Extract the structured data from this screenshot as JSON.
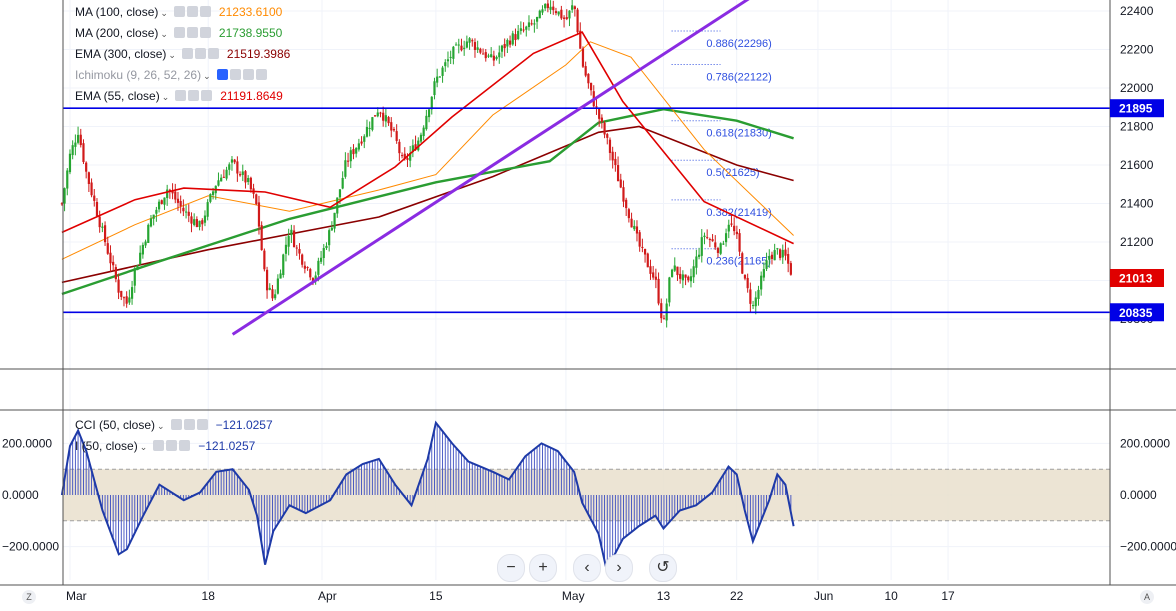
{
  "legend": [
    {
      "name": "MA (100, close)",
      "value": "21233.6100",
      "color": "#ff8a00"
    },
    {
      "name": "MA (200, close)",
      "value": "21738.9550",
      "color": "#2a9d32"
    },
    {
      "name": "EMA (300, close)",
      "value": "21519.3986",
      "color": "#8b0000"
    },
    {
      "name": "Ichimoku (9, 26, 52, 26)",
      "value": "",
      "color": "#9598a1"
    },
    {
      "name": "EMA (55, close)",
      "value": "21191.8649",
      "color": "#e00000"
    }
  ],
  "cci_legend": [
    {
      "name": "CCI (50, close)",
      "value": "−121.0257",
      "color": "#1e3aa8"
    },
    {
      "name": "I (50, close)",
      "value": "−121.0257",
      "color": "#1e3aa8"
    }
  ],
  "nav": {
    "zoom_out": "−",
    "zoom_in": "+",
    "back": "‹",
    "forward": "›",
    "reset": "↺"
  },
  "corner": {
    "left": "Z",
    "right": "A"
  },
  "chart_data": {
    "type": "candlestick",
    "price_axis": {
      "min": 20700,
      "max": 22500,
      "ticks": [
        "22400",
        "22200",
        "22000",
        "21800",
        "21600",
        "21400",
        "21200",
        "21000",
        "20800"
      ]
    },
    "price_tags": [
      {
        "value": 21895,
        "label": "21895",
        "color": "#0000e6"
      },
      {
        "value": 21013,
        "label": "21013",
        "color": "#e00000"
      },
      {
        "value": 20835,
        "label": "20835",
        "color": "#0000e6"
      }
    ],
    "horizontal_lines": [
      21895,
      20835
    ],
    "trendline": {
      "from": [
        "Mar 21",
        "20720"
      ],
      "to": [
        "May 27",
        "22560"
      ],
      "color": "#8a2be2"
    },
    "fibonacci": [
      {
        "label": "0.886(22296)",
        "value": 22296
      },
      {
        "label": "0.786(22122)",
        "value": 22122
      },
      {
        "label": "0.618(21830)",
        "value": 21830
      },
      {
        "label": "0.5(21625)",
        "value": 21625
      },
      {
        "label": "0.382(21419)",
        "value": 21419
      },
      {
        "label": "0.236(21165)",
        "value": 21165
      }
    ],
    "x_ticks": [
      "Mar",
      "18",
      "Apr",
      "15",
      "May",
      "13",
      "22",
      "Jun",
      "10",
      "17"
    ],
    "price_series": [
      [
        "Feb 28",
        21400
      ],
      [
        "Mar 1",
        21650
      ],
      [
        "Mar 2",
        21780
      ],
      [
        "Mar 3",
        21560
      ],
      [
        "Mar 5",
        21250
      ],
      [
        "Mar 7",
        20950
      ],
      [
        "Mar 8",
        20880
      ],
      [
        "Mar 9",
        21060
      ],
      [
        "Mar 11",
        21320
      ],
      [
        "Mar 13",
        21480
      ],
      [
        "Mar 15",
        21360
      ],
      [
        "Mar 17",
        21280
      ],
      [
        "Mar 19",
        21510
      ],
      [
        "Mar 21",
        21610
      ],
      [
        "Mar 23",
        21500
      ],
      [
        "Mar 24",
        21380
      ],
      [
        "Mar 25",
        21000
      ],
      [
        "Mar 26",
        20900
      ],
      [
        "Mar 28",
        21270
      ],
      [
        "Mar 29",
        21150
      ],
      [
        "Mar 31",
        21010
      ],
      [
        "Apr 2",
        21260
      ],
      [
        "Apr 4",
        21620
      ],
      [
        "Apr 6",
        21750
      ],
      [
        "Apr 8",
        21900
      ],
      [
        "Apr 10",
        21740
      ],
      [
        "Apr 11",
        21600
      ],
      [
        "Apr 13",
        21740
      ],
      [
        "Apr 15",
        22040
      ],
      [
        "Apr 17",
        22180
      ],
      [
        "Apr 19",
        22250
      ],
      [
        "Apr 22",
        22140
      ],
      [
        "Apr 24",
        22250
      ],
      [
        "Apr 27",
        22330
      ],
      [
        "Apr 29",
        22440
      ],
      [
        "May 1",
        22350
      ],
      [
        "May 2",
        22440
      ],
      [
        "May 3",
        22130
      ],
      [
        "May 4",
        21980
      ],
      [
        "May 6",
        21730
      ],
      [
        "May 8",
        21450
      ],
      [
        "May 10",
        21180
      ],
      [
        "May 12",
        21000
      ],
      [
        "May 13",
        20760
      ],
      [
        "May 14",
        21080
      ],
      [
        "May 16",
        20970
      ],
      [
        "May 18",
        21240
      ],
      [
        "May 20",
        21160
      ],
      [
        "May 21",
        21310
      ],
      [
        "May 22",
        21220
      ],
      [
        "May 23",
        20990
      ],
      [
        "May 24",
        20860
      ],
      [
        "May 26",
        21130
      ],
      [
        "May 27",
        21150
      ],
      [
        "May 28",
        21120
      ],
      [
        "May 29",
        21013
      ]
    ],
    "ma100": [
      [
        "Feb 28",
        21110
      ],
      [
        "Mar 9",
        21290
      ],
      [
        "Mar 18",
        21440
      ],
      [
        "Mar 28",
        21360
      ],
      [
        "Apr 8",
        21470
      ],
      [
        "Apr 15",
        21550
      ],
      [
        "Apr 22",
        21860
      ],
      [
        "May 1",
        22120
      ],
      [
        "May 4",
        22240
      ],
      [
        "May 9",
        22160
      ],
      [
        "May 18",
        21680
      ],
      [
        "May 29",
        21233.61
      ]
    ],
    "ma200": [
      [
        "Feb 28",
        20930
      ],
      [
        "Mar 12",
        21100
      ],
      [
        "Mar 28",
        21320
      ],
      [
        "Apr 15",
        21510
      ],
      [
        "Apr 29",
        21620
      ],
      [
        "May 5",
        21820
      ],
      [
        "May 13",
        21890
      ],
      [
        "May 22",
        21830
      ],
      [
        "May 29",
        21738.955
      ]
    ],
    "ema300": [
      [
        "Feb 28",
        20990
      ],
      [
        "Mar 18",
        21160
      ],
      [
        "Apr 8",
        21330
      ],
      [
        "Apr 22",
        21540
      ],
      [
        "May 5",
        21770
      ],
      [
        "May 10",
        21800
      ],
      [
        "May 22",
        21600
      ],
      [
        "May 29",
        21519.3986
      ]
    ],
    "ema55": [
      [
        "Feb 28",
        21250
      ],
      [
        "Mar 9",
        21420
      ],
      [
        "Mar 15",
        21480
      ],
      [
        "Mar 25",
        21460
      ],
      [
        "Apr 2",
        21380
      ],
      [
        "Apr 10",
        21590
      ],
      [
        "Apr 17",
        21850
      ],
      [
        "Apr 27",
        22180
      ],
      [
        "May 3",
        22290
      ],
      [
        "May 8",
        21930
      ],
      [
        "May 18",
        21410
      ],
      [
        "May 29",
        21191.8649
      ]
    ],
    "cci": {
      "axis": {
        "min": -300,
        "max": 320,
        "ticks": [
          "200.0000",
          "0.0000",
          "−200.0000"
        ]
      },
      "band": [
        -100,
        100
      ],
      "series": [
        [
          "Feb 28",
          0
        ],
        [
          "Mar 1",
          190
        ],
        [
          "Mar 2",
          250
        ],
        [
          "Mar 3",
          170
        ],
        [
          "Mar 5",
          -60
        ],
        [
          "Mar 7",
          -230
        ],
        [
          "Mar 8",
          -210
        ],
        [
          "Mar 10",
          -80
        ],
        [
          "Mar 12",
          40
        ],
        [
          "Mar 15",
          -20
        ],
        [
          "Mar 17",
          10
        ],
        [
          "Mar 19",
          90
        ],
        [
          "Mar 21",
          100
        ],
        [
          "Mar 23",
          20
        ],
        [
          "Mar 24",
          -80
        ],
        [
          "Mar 25",
          -270
        ],
        [
          "Mar 26",
          -140
        ],
        [
          "Mar 28",
          -40
        ],
        [
          "Mar 30",
          -70
        ],
        [
          "Apr 2",
          -20
        ],
        [
          "Apr 4",
          80
        ],
        [
          "Apr 6",
          120
        ],
        [
          "Apr 8",
          140
        ],
        [
          "Apr 10",
          40
        ],
        [
          "Apr 12",
          -40
        ],
        [
          "Apr 14",
          140
        ],
        [
          "Apr 15",
          280
        ],
        [
          "Apr 17",
          200
        ],
        [
          "Apr 19",
          130
        ],
        [
          "Apr 22",
          90
        ],
        [
          "Apr 24",
          60
        ],
        [
          "Apr 26",
          150
        ],
        [
          "Apr 28",
          200
        ],
        [
          "Apr 30",
          170
        ],
        [
          "May 2",
          90
        ],
        [
          "May 3",
          -30
        ],
        [
          "May 5",
          -150
        ],
        [
          "May 6",
          -290
        ],
        [
          "May 8",
          -170
        ],
        [
          "May 10",
          -120
        ],
        [
          "May 12",
          -80
        ],
        [
          "May 13",
          -130
        ],
        [
          "May 15",
          -60
        ],
        [
          "May 17",
          -40
        ],
        [
          "May 19",
          10
        ],
        [
          "May 21",
          110
        ],
        [
          "May 22",
          80
        ],
        [
          "May 23",
          -60
        ],
        [
          "May 24",
          -180
        ],
        [
          "May 26",
          -20
        ],
        [
          "May 27",
          80
        ],
        [
          "May 28",
          40
        ],
        [
          "May 29",
          -121.0257
        ]
      ]
    }
  }
}
